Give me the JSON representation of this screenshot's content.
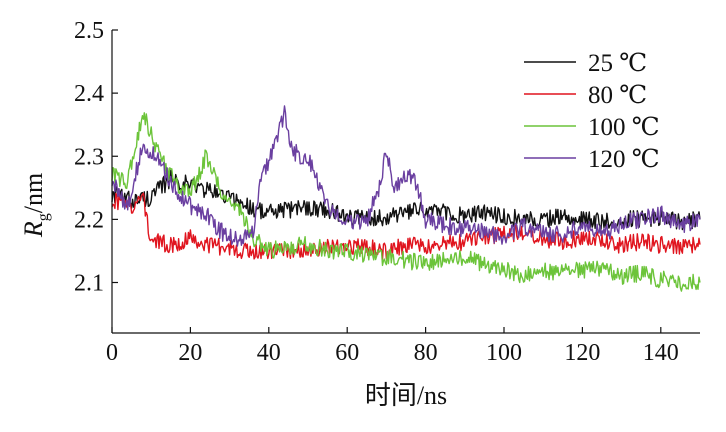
{
  "chart_data": {
    "type": "line",
    "xlabel": "时间/ns",
    "ylabel": {
      "main": "R",
      "sub": "g",
      "unit": "/nm"
    },
    "xlim": [
      0,
      150
    ],
    "ylim": [
      2.02,
      2.5
    ],
    "xticks": [
      0,
      20,
      40,
      60,
      80,
      100,
      120,
      140
    ],
    "yticks": [
      "2.1",
      "2.2",
      "2.3",
      "2.4",
      "2.5"
    ],
    "grid": false,
    "legend_position": "top-right",
    "series": [
      {
        "name": "25 ℃",
        "color": "#111111",
        "x": [
          0,
          5,
          10,
          15,
          20,
          25,
          30,
          35,
          40,
          45,
          50,
          55,
          60,
          65,
          70,
          75,
          80,
          85,
          90,
          95,
          100,
          105,
          110,
          115,
          120,
          125,
          130,
          135,
          140,
          145,
          150
        ],
        "y": [
          2.24,
          2.23,
          2.235,
          2.265,
          2.255,
          2.245,
          2.235,
          2.22,
          2.21,
          2.215,
          2.22,
          2.215,
          2.205,
          2.2,
          2.205,
          2.21,
          2.215,
          2.21,
          2.205,
          2.21,
          2.205,
          2.2,
          2.2,
          2.205,
          2.2,
          2.195,
          2.2,
          2.2,
          2.205,
          2.195,
          2.2
        ]
      },
      {
        "name": "80 ℃",
        "color": "#e0141e",
        "x": [
          0,
          5,
          8,
          10,
          15,
          20,
          25,
          30,
          35,
          40,
          45,
          50,
          55,
          60,
          65,
          70,
          75,
          80,
          85,
          90,
          95,
          100,
          105,
          110,
          115,
          120,
          125,
          130,
          135,
          140,
          145,
          150
        ],
        "y": [
          2.23,
          2.22,
          2.235,
          2.165,
          2.16,
          2.17,
          2.16,
          2.155,
          2.15,
          2.15,
          2.15,
          2.155,
          2.155,
          2.16,
          2.155,
          2.15,
          2.16,
          2.155,
          2.16,
          2.165,
          2.17,
          2.18,
          2.175,
          2.17,
          2.165,
          2.17,
          2.165,
          2.16,
          2.165,
          2.16,
          2.155,
          2.16
        ]
      },
      {
        "name": "100 ℃",
        "color": "#6cc43a",
        "x": [
          0,
          4,
          8,
          12,
          16,
          20,
          24,
          28,
          32,
          36,
          40,
          45,
          50,
          55,
          60,
          65,
          70,
          75,
          80,
          85,
          90,
          95,
          100,
          105,
          110,
          115,
          120,
          125,
          130,
          135,
          140,
          145,
          150
        ],
        "y": [
          2.27,
          2.26,
          2.37,
          2.3,
          2.26,
          2.24,
          2.3,
          2.24,
          2.22,
          2.17,
          2.15,
          2.155,
          2.16,
          2.15,
          2.15,
          2.145,
          2.14,
          2.135,
          2.13,
          2.135,
          2.14,
          2.13,
          2.12,
          2.11,
          2.12,
          2.115,
          2.12,
          2.12,
          2.11,
          2.115,
          2.105,
          2.1,
          2.1
        ]
      },
      {
        "name": "120 ℃",
        "color": "#6a3fa0",
        "x": [
          0,
          4,
          8,
          12,
          16,
          20,
          24,
          28,
          32,
          36,
          38,
          40,
          42,
          44,
          46,
          48,
          50,
          52,
          55,
          60,
          65,
          68,
          70,
          72,
          74,
          76,
          78,
          80,
          85,
          90,
          95,
          100,
          105,
          110,
          115,
          120,
          125,
          130,
          135,
          140,
          145,
          150
        ],
        "y": [
          2.26,
          2.22,
          2.32,
          2.29,
          2.25,
          2.22,
          2.21,
          2.18,
          2.17,
          2.18,
          2.27,
          2.29,
          2.33,
          2.37,
          2.31,
          2.3,
          2.3,
          2.27,
          2.22,
          2.2,
          2.195,
          2.25,
          2.31,
          2.24,
          2.27,
          2.27,
          2.25,
          2.2,
          2.19,
          2.185,
          2.18,
          2.17,
          2.19,
          2.18,
          2.175,
          2.19,
          2.175,
          2.195,
          2.2,
          2.21,
          2.19,
          2.2
        ]
      }
    ]
  }
}
